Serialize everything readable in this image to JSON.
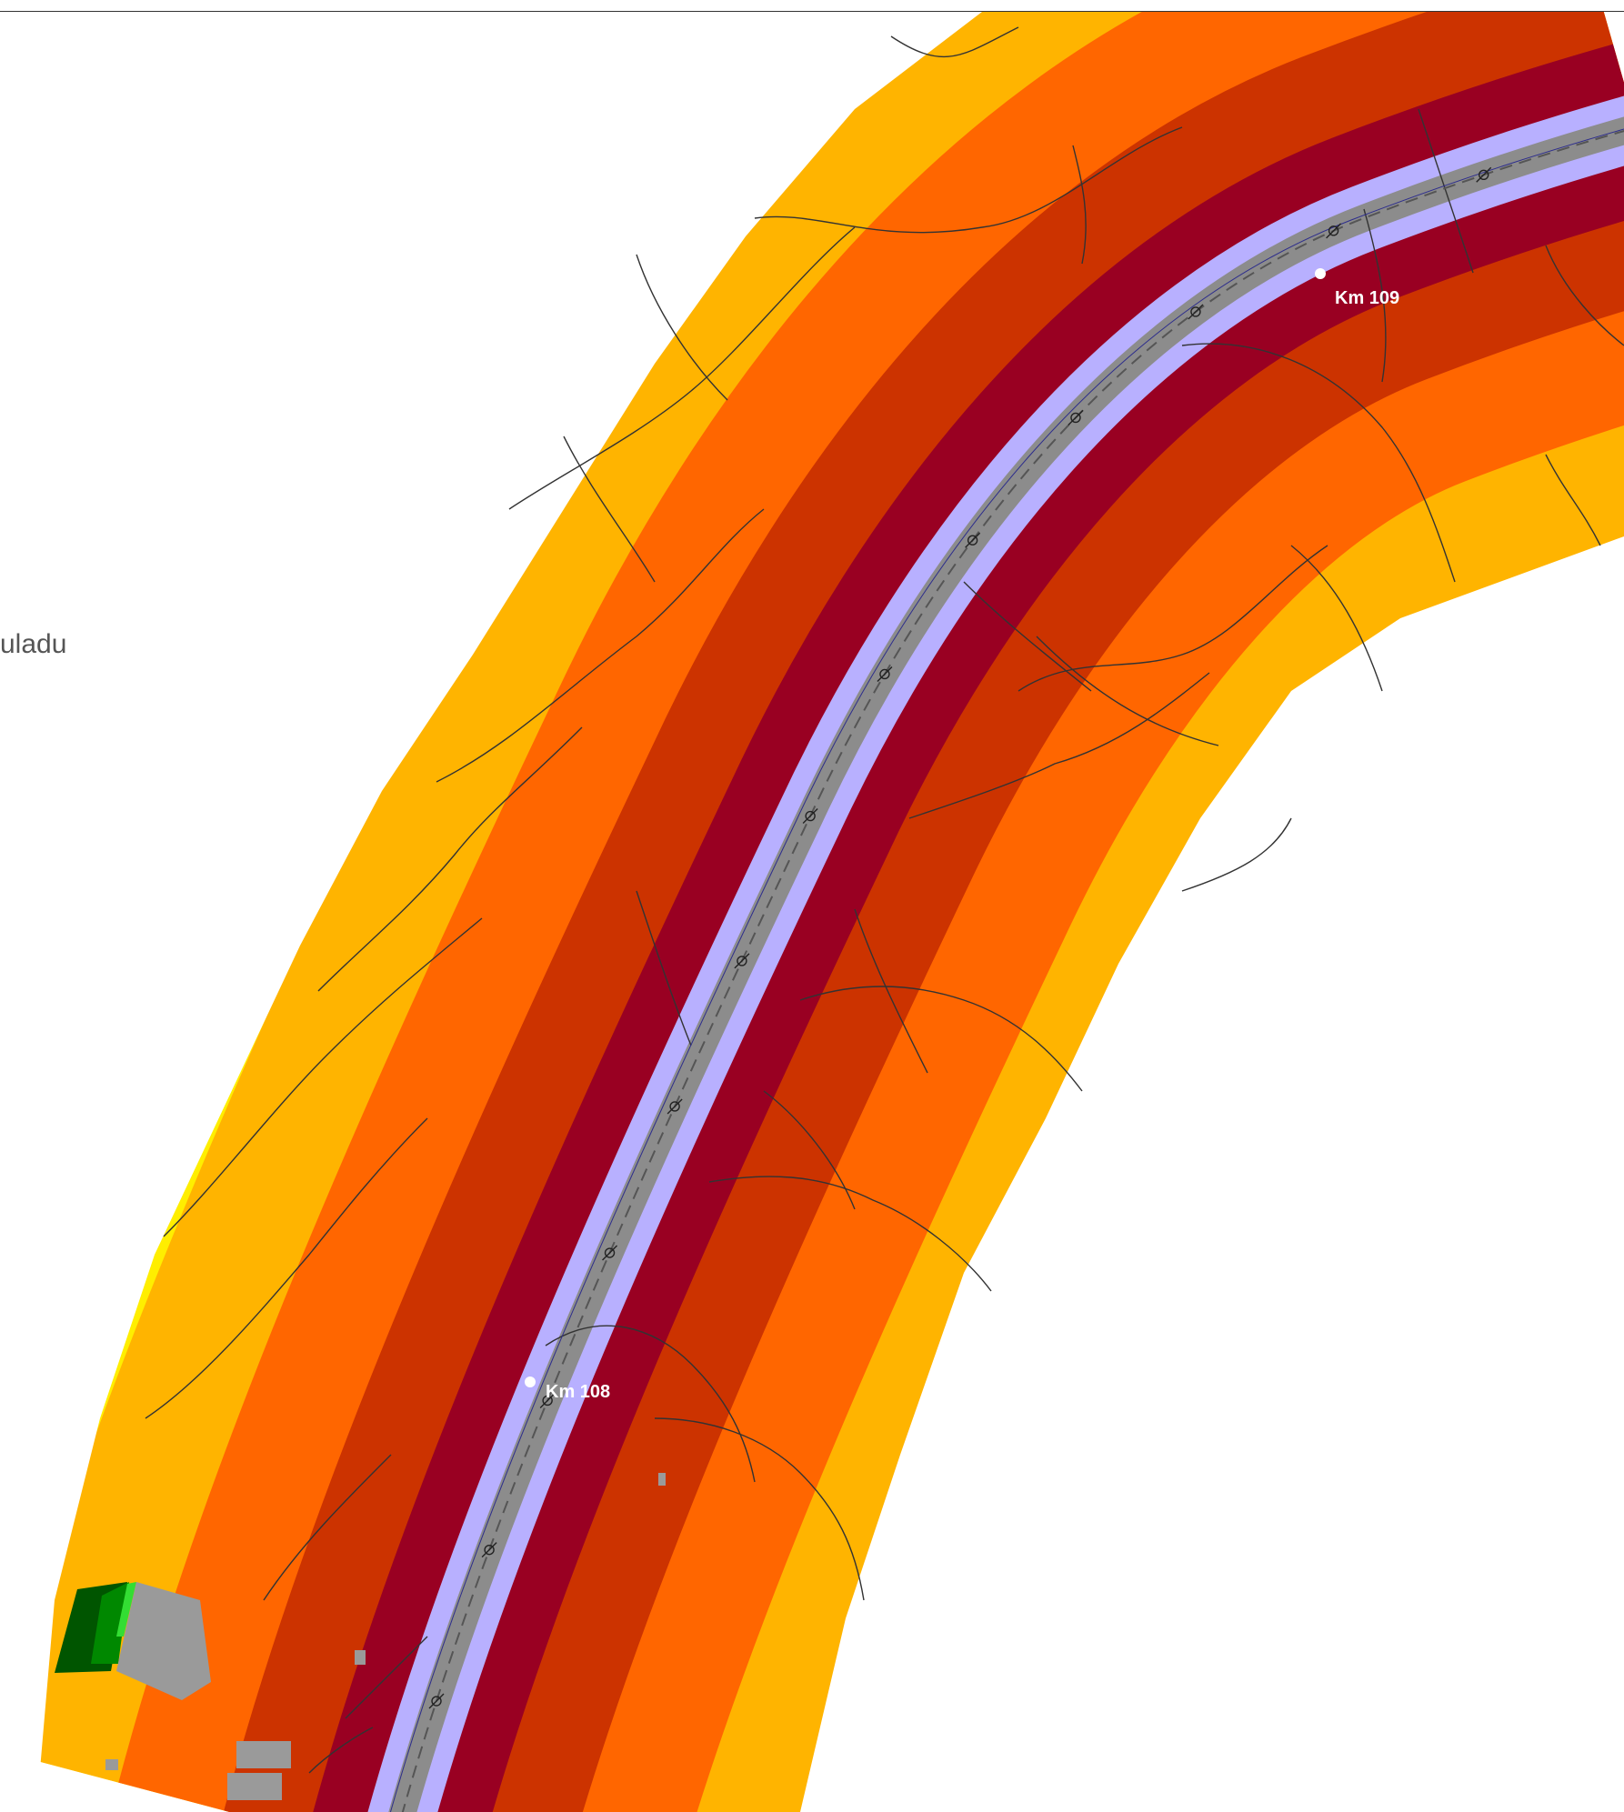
{
  "legend": {
    "fragment_text": "uladu"
  },
  "markers": [
    {
      "label": "Km 109"
    },
    {
      "label": "Km 108"
    }
  ],
  "colors": {
    "zone_outer_yellow": "#ffee00",
    "zone_light_orange": "#ffb400",
    "zone_orange": "#ff6600",
    "zone_dark_orange": "#cc3300",
    "zone_crimson": "#990022",
    "road_verge": "#b8b0ff",
    "carriageway": "#8c8c8c",
    "building": "#9a9a9a",
    "quiet_zone_dark_green": "#005500",
    "quiet_zone_green": "#008800",
    "quiet_zone_light_green": "#33dd33"
  },
  "icons": {
    "road_marker": "crosshair-circle-icon",
    "km_point": "white-dot-icon"
  }
}
